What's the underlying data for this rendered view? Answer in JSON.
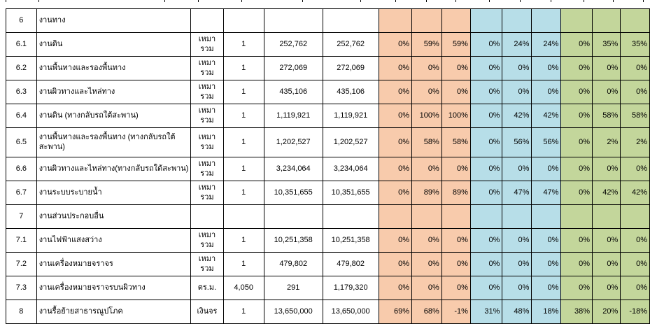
{
  "colors": {
    "orange_group": "#F8CBAC",
    "blue_group": "#B7DEE8",
    "green_group": "#C3D69B",
    "grid_border": "#000000",
    "background": "#FFFFFF"
  },
  "table": {
    "rows": [
      {
        "no": "6",
        "desc": "งานทาง",
        "unit": "",
        "qty": "",
        "unit_price": "",
        "amount": "",
        "pct_orange": [
          "",
          "",
          ""
        ],
        "pct_blue": [
          "",
          "",
          ""
        ],
        "pct_green": [
          "",
          "",
          ""
        ]
      },
      {
        "no": "6.1",
        "desc": "งานดิน",
        "unit": "เหมารวม",
        "qty": "1",
        "unit_price": "252,762",
        "amount": "252,762",
        "pct_orange": [
          "0%",
          "59%",
          "59%"
        ],
        "pct_blue": [
          "0%",
          "24%",
          "24%"
        ],
        "pct_green": [
          "0%",
          "35%",
          "35%"
        ]
      },
      {
        "no": "6.2",
        "desc": "งานพื้นทางและรองพื้นทาง",
        "unit": "เหมารวม",
        "qty": "1",
        "unit_price": "272,069",
        "amount": "272,069",
        "pct_orange": [
          "0%",
          "0%",
          "0%"
        ],
        "pct_blue": [
          "0%",
          "0%",
          "0%"
        ],
        "pct_green": [
          "0%",
          "0%",
          "0%"
        ]
      },
      {
        "no": "6.3",
        "desc": "งานผิวทางและไหล่ทาง",
        "unit": "เหมารวม",
        "qty": "1",
        "unit_price": "435,106",
        "amount": "435,106",
        "pct_orange": [
          "0%",
          "0%",
          "0%"
        ],
        "pct_blue": [
          "0%",
          "0%",
          "0%"
        ],
        "pct_green": [
          "0%",
          "0%",
          "0%"
        ]
      },
      {
        "no": "6.4",
        "desc": "งานดิน (ทางกลับรถใต้สะพาน)",
        "unit": "เหมารวม",
        "qty": "1",
        "unit_price": "1,119,921",
        "amount": "1,119,921",
        "pct_orange": [
          "0%",
          "100%",
          "100%"
        ],
        "pct_blue": [
          "0%",
          "42%",
          "42%"
        ],
        "pct_green": [
          "0%",
          "58%",
          "58%"
        ]
      },
      {
        "no": "6.5",
        "desc": "งานพื้นทางและรองพื้นทาง (ทางกลับรถใต้สะพาน)",
        "unit": "เหมารวม",
        "qty": "1",
        "unit_price": "1,202,527",
        "amount": "1,202,527",
        "pct_orange": [
          "0%",
          "58%",
          "58%"
        ],
        "pct_blue": [
          "0%",
          "56%",
          "56%"
        ],
        "pct_green": [
          "0%",
          "2%",
          "2%"
        ]
      },
      {
        "no": "6.6",
        "desc": "งานผิวทางและไหล่ทาง(ทางกลับรถใต้สะพาน)",
        "unit": "เหมารวม",
        "qty": "1",
        "unit_price": "3,234,064",
        "amount": "3,234,064",
        "pct_orange": [
          "0%",
          "0%",
          "0%"
        ],
        "pct_blue": [
          "0%",
          "0%",
          "0%"
        ],
        "pct_green": [
          "0%",
          "0%",
          "0%"
        ]
      },
      {
        "no": "6.7",
        "desc": "งานระบบระบายน้ำ",
        "unit": "เหมารวม",
        "qty": "1",
        "unit_price": "10,351,655",
        "amount": "10,351,655",
        "pct_orange": [
          "0%",
          "89%",
          "89%"
        ],
        "pct_blue": [
          "0%",
          "47%",
          "47%"
        ],
        "pct_green": [
          "0%",
          "42%",
          "42%"
        ]
      },
      {
        "no": "7",
        "desc": "งานส่วนประกอบอื่น",
        "unit": "",
        "qty": "",
        "unit_price": "",
        "amount": "",
        "pct_orange": [
          "",
          "",
          ""
        ],
        "pct_blue": [
          "",
          "",
          ""
        ],
        "pct_green": [
          "",
          "",
          ""
        ]
      },
      {
        "no": "7.1",
        "desc": "งานไฟฟ้าแสงสว่าง",
        "unit": "เหมารวม",
        "qty": "1",
        "unit_price": "10,251,358",
        "amount": "10,251,358",
        "pct_orange": [
          "0%",
          "0%",
          "0%"
        ],
        "pct_blue": [
          "0%",
          "0%",
          "0%"
        ],
        "pct_green": [
          "0%",
          "0%",
          "0%"
        ]
      },
      {
        "no": "7.2",
        "desc": "งานเครื่องหมายจราจร",
        "unit": "เหมารวม",
        "qty": "1",
        "unit_price": "479,802",
        "amount": "479,802",
        "pct_orange": [
          "0%",
          "0%",
          "0%"
        ],
        "pct_blue": [
          "0%",
          "0%",
          "0%"
        ],
        "pct_green": [
          "0%",
          "0%",
          "0%"
        ]
      },
      {
        "no": "7.3",
        "desc": "งานเครื่องหมายจราจรบนผิวทาง",
        "unit": "ตร.ม.",
        "qty": "4,050",
        "unit_price": "291",
        "amount": "1,179,320",
        "pct_orange": [
          "0%",
          "0%",
          "0%"
        ],
        "pct_blue": [
          "0%",
          "0%",
          "0%"
        ],
        "pct_green": [
          "0%",
          "0%",
          "0%"
        ]
      },
      {
        "no": "8",
        "desc": "งานรื้อย้ายสาธารณูปโภค",
        "unit": "เงินจร",
        "qty": "1",
        "unit_price": "13,650,000",
        "amount": "13,650,000",
        "pct_orange": [
          "69%",
          "68%",
          "-1%"
        ],
        "pct_blue": [
          "31%",
          "48%",
          "18%"
        ],
        "pct_green": [
          "38%",
          "20%",
          "-18%"
        ]
      }
    ]
  }
}
